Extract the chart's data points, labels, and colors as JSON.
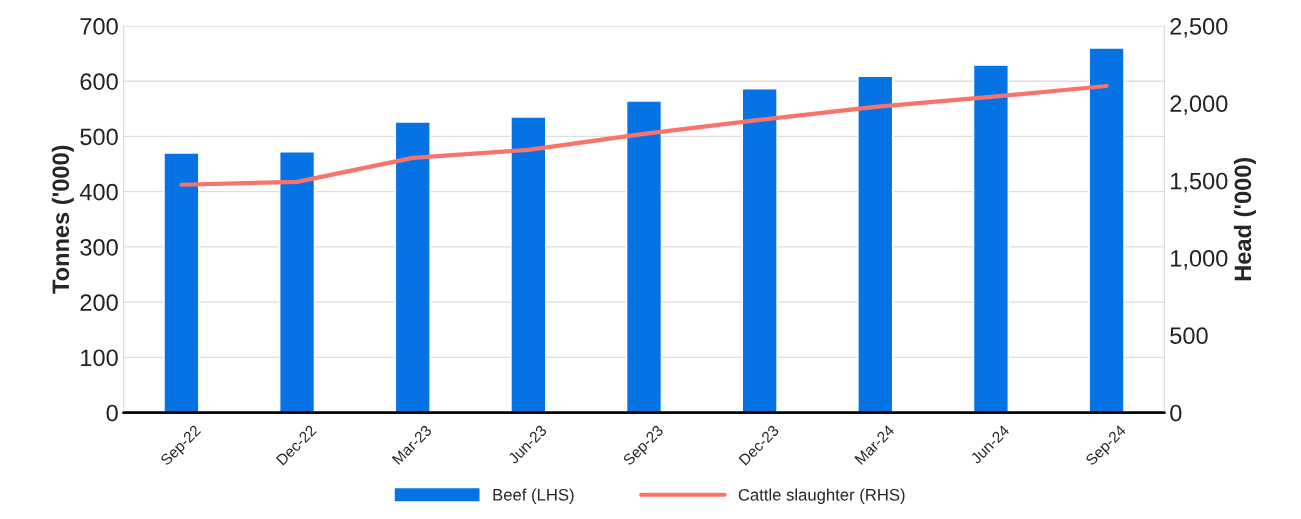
{
  "chart_data": {
    "type": "bar",
    "categories": [
      "Sep-22",
      "Dec-22",
      "Mar-23",
      "Jun-23",
      "Sep-23",
      "Dec-23",
      "Mar-24",
      "Jun-24",
      "Sep-24"
    ],
    "series": [
      {
        "name": "Beef (LHS)",
        "color": "#0673e5",
        "values": [
          470,
          472,
          526,
          535,
          564,
          586,
          609,
          629,
          660
        ]
      },
      {
        "name": "Cattle slaughter (RHS)",
        "type": "line",
        "axis": "y2",
        "color": "#f8736b",
        "values": [
          1473,
          1492,
          1647,
          1699,
          1802,
          1893,
          1977,
          2041,
          2112
        ]
      }
    ],
    "ylabel": "Tonnes ('000)",
    "y2label": "Head ('000)",
    "ylim": [
      0,
      700
    ],
    "yticks": [
      0,
      100,
      200,
      300,
      400,
      500,
      600,
      700
    ],
    "y2lim": [
      0,
      2500
    ],
    "y2ticks": [
      0,
      500,
      {
        "value": 1000,
        "label": "1,000"
      },
      {
        "value": 1500,
        "label": "1,500"
      },
      {
        "value": 2000,
        "label": "2,000"
      },
      {
        "value": 2500,
        "label": "2,500"
      }
    ],
    "grid": "y",
    "legend": "bottom",
    "marker": "none",
    "line_style": "solid"
  }
}
